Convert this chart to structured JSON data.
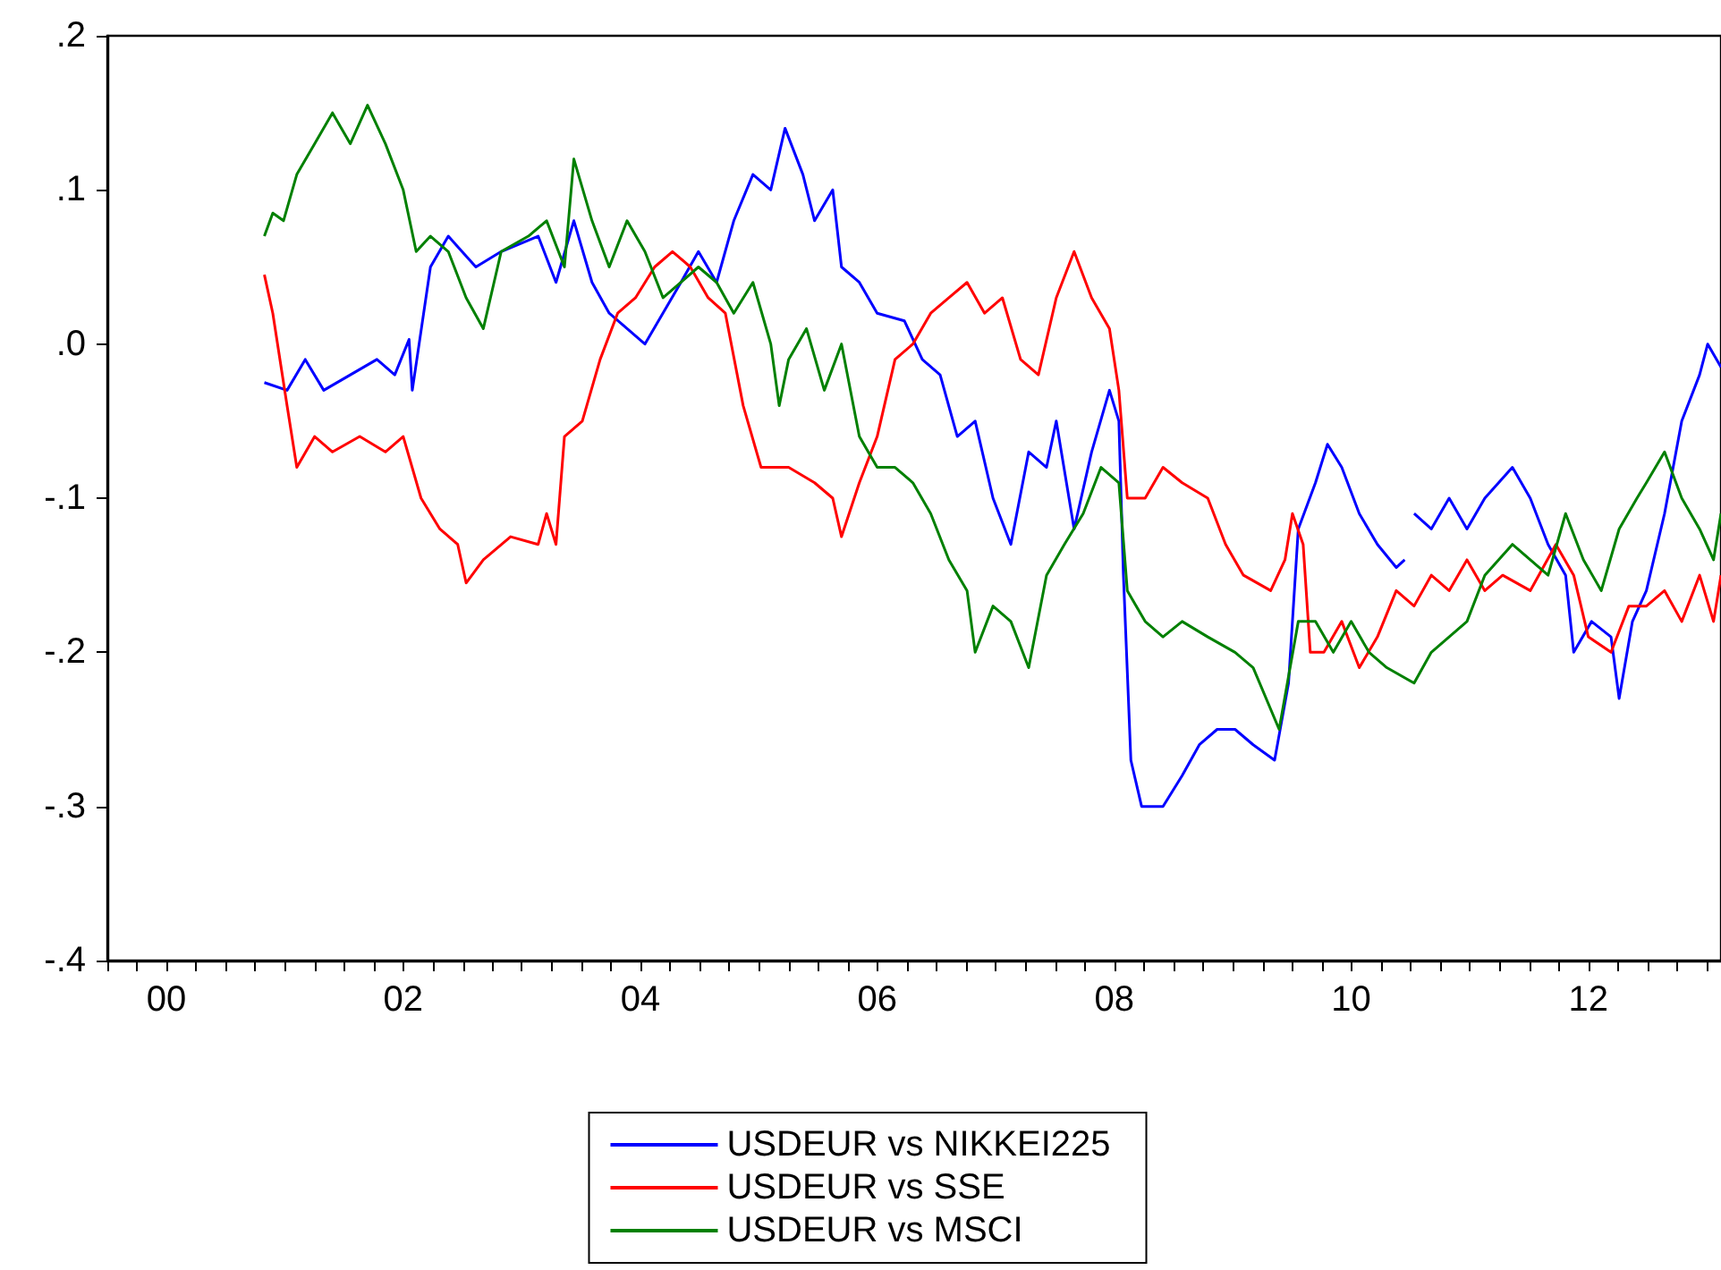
{
  "chart_data": {
    "type": "line",
    "xlim": [
      "2000-01-01",
      "2013-08-14"
    ],
    "xticks": [
      {
        "value": "2000-01-01",
        "label": null
      },
      {
        "value": "2000-04-01",
        "label": null
      },
      {
        "value": "2000-07-01",
        "label": "00"
      },
      {
        "value": "2000-10-01",
        "label": null
      },
      {
        "value": "2001-01-01",
        "label": null
      },
      {
        "value": "2001-04-01",
        "label": null
      },
      {
        "value": "2001-07-01",
        "label": null
      },
      {
        "value": "2001-10-01",
        "label": null
      },
      {
        "value": "2002-01-01",
        "label": null
      },
      {
        "value": "2002-04-01",
        "label": null
      },
      {
        "value": "2002-07-01",
        "label": "02"
      },
      {
        "value": "2002-10-01",
        "label": null
      },
      {
        "value": "2003-01-01",
        "label": null
      },
      {
        "value": "2003-04-01",
        "label": null
      },
      {
        "value": "2003-07-01",
        "label": null
      },
      {
        "value": "2003-10-01",
        "label": null
      },
      {
        "value": "2004-01-01",
        "label": null
      },
      {
        "value": "2004-04-01",
        "label": null
      },
      {
        "value": "2004-07-01",
        "label": "04"
      },
      {
        "value": "2004-10-01",
        "label": null
      },
      {
        "value": "2005-01-01",
        "label": null
      },
      {
        "value": "2005-04-01",
        "label": null
      },
      {
        "value": "2005-07-01",
        "label": null
      },
      {
        "value": "2005-10-01",
        "label": null
      },
      {
        "value": "2006-01-01",
        "label": null
      },
      {
        "value": "2006-04-01",
        "label": null
      },
      {
        "value": "2006-07-01",
        "label": "06"
      },
      {
        "value": "2006-10-01",
        "label": null
      },
      {
        "value": "2007-01-01",
        "label": null
      },
      {
        "value": "2007-04-01",
        "label": null
      },
      {
        "value": "2007-07-01",
        "label": null
      },
      {
        "value": "2007-10-01",
        "label": null
      },
      {
        "value": "2008-01-01",
        "label": null
      },
      {
        "value": "2008-04-01",
        "label": null
      },
      {
        "value": "2008-07-01",
        "label": "08"
      },
      {
        "value": "2008-10-01",
        "label": null
      },
      {
        "value": "2009-01-01",
        "label": null
      },
      {
        "value": "2009-04-01",
        "label": null
      },
      {
        "value": "2009-07-01",
        "label": null
      },
      {
        "value": "2009-10-01",
        "label": null
      },
      {
        "value": "2010-01-01",
        "label": null
      },
      {
        "value": "2010-04-01",
        "label": null
      },
      {
        "value": "2010-07-01",
        "label": "10"
      },
      {
        "value": "2010-10-01",
        "label": null
      },
      {
        "value": "2011-01-01",
        "label": null
      },
      {
        "value": "2011-04-01",
        "label": null
      },
      {
        "value": "2011-07-01",
        "label": null
      },
      {
        "value": "2011-10-01",
        "label": null
      },
      {
        "value": "2012-01-01",
        "label": null
      },
      {
        "value": "2012-04-01",
        "label": null
      },
      {
        "value": "2012-07-01",
        "label": "12"
      },
      {
        "value": "2012-10-01",
        "label": null
      },
      {
        "value": "2013-01-01",
        "label": null
      },
      {
        "value": "2013-04-01",
        "label": null
      },
      {
        "value": "2013-07-01",
        "label": null
      }
    ],
    "ylim": [
      -0.4,
      0.2
    ],
    "yticks": [
      {
        "value": -0.4,
        "label": "-.4"
      },
      {
        "value": -0.3,
        "label": "-.3"
      },
      {
        "value": -0.2,
        "label": "-.2"
      },
      {
        "value": -0.1,
        "label": "-.1"
      },
      {
        "value": 0,
        "label": ".0"
      },
      {
        "value": 0.1,
        "label": ".1"
      },
      {
        "value": 0.2,
        "label": ".2"
      }
    ],
    "grid": false,
    "legend": "bottom",
    "marker": "none",
    "line_style": "solid",
    "series": [
      {
        "name": "USDEUR vs NIKKEI225",
        "color": "#0000ff",
        "x": [
          "2001-04-29",
          "2001-07-08",
          "2001-09-02",
          "2001-10-29",
          "2002-01-19",
          "2002-04-11",
          "2002-06-05",
          "2002-07-19",
          "2002-07-29",
          "2002-09-23",
          "2002-11-17",
          "2003-02-10",
          "2003-04-29",
          "2003-08-21",
          "2003-10-15",
          "2003-12-09",
          "2004-02-03",
          "2004-03-27",
          "2004-07-15",
          "2004-11-03",
          "2004-12-27",
          "2005-02-21",
          "2005-04-15",
          "2005-06-13",
          "2005-08-07",
          "2005-09-20",
          "2005-11-14",
          "2005-12-20",
          "2006-02-14",
          "2006-03-13",
          "2006-05-07",
          "2006-07-01",
          "2006-09-23",
          "2006-11-17",
          "2007-01-11",
          "2007-03-05",
          "2007-04-29",
          "2007-06-23",
          "2007-08-17",
          "2007-10-11",
          "2007-12-05",
          "2008-01-04",
          "2008-02-28",
          "2008-04-22",
          "2008-06-16",
          "2008-07-15",
          "2008-07-29",
          "2008-08-21",
          "2008-09-23",
          "2008-11-28",
          "2009-01-26",
          "2009-03-20",
          "2009-05-14",
          "2009-07-08",
          "2009-09-02",
          "2009-11-07",
          "2009-12-20",
          "2010-01-19",
          "2010-03-13",
          "2010-04-19",
          "2010-06-02",
          "2010-07-26",
          "2010-09-20",
          "2010-11-17",
          "2010-12-13",
          "2010-12-23",
          "2011-01-11",
          "2011-03-05",
          "2011-04-29",
          "2011-06-23",
          "2011-08-17",
          "2011-11-10",
          "2012-01-04",
          "2012-02-28",
          "2012-04-22",
          "2012-05-17",
          "2012-07-11",
          "2012-09-09",
          "2012-10-04",
          "2012-11-14",
          "2012-12-27",
          "2013-02-21",
          "2013-04-15",
          "2013-06-09",
          "2013-07-04",
          "2013-08-14"
        ],
        "values": [
          -0.025,
          -0.03,
          -0.01,
          -0.03,
          -0.02,
          -0.01,
          -0.02,
          0.003,
          -0.03,
          0.05,
          0.07,
          0.05,
          0.06,
          0.07,
          0.04,
          0.08,
          0.04,
          0.02,
          0.0,
          0.04,
          0.06,
          0.04,
          0.08,
          0.11,
          0.1,
          0.14,
          0.11,
          0.08,
          0.1,
          0.05,
          0.04,
          0.02,
          0.015,
          -0.01,
          -0.02,
          -0.06,
          -0.05,
          -0.1,
          -0.13,
          -0.07,
          -0.08,
          -0.05,
          -0.12,
          -0.07,
          -0.03,
          -0.05,
          -0.15,
          -0.27,
          -0.3,
          -0.3,
          -0.28,
          -0.26,
          -0.25,
          -0.25,
          -0.26,
          -0.27,
          -0.22,
          -0.12,
          -0.09,
          -0.065,
          -0.08,
          -0.11,
          -0.13,
          -0.145,
          -0.14,
          null,
          -0.11,
          -0.12,
          -0.1,
          -0.12,
          -0.1,
          -0.08,
          -0.1,
          -0.13,
          -0.15,
          -0.2,
          -0.18,
          -0.19,
          -0.23,
          -0.18,
          -0.16,
          -0.11,
          -0.05,
          -0.02,
          0.0,
          -0.015
        ]
      },
      {
        "name": "USDEUR vs SSE",
        "color": "#ff0000",
        "x": [
          "2001-04-29",
          "2001-05-25",
          "2001-07-08",
          "2001-08-07",
          "2001-10-01",
          "2001-11-25",
          "2002-02-17",
          "2002-05-07",
          "2002-07-01",
          "2002-08-25",
          "2002-10-22",
          "2002-12-16",
          "2003-01-11",
          "2003-03-05",
          "2003-05-28",
          "2003-08-21",
          "2003-09-16",
          "2003-10-15",
          "2003-11-10",
          "2004-01-04",
          "2004-02-28",
          "2004-04-22",
          "2004-06-16",
          "2004-08-14",
          "2004-10-08",
          "2004-12-02",
          "2005-01-26",
          "2005-03-20",
          "2005-05-14",
          "2005-07-08",
          "2005-10-01",
          "2005-12-20",
          "2006-02-14",
          "2006-03-13",
          "2006-05-07",
          "2006-07-01",
          "2006-08-25",
          "2006-10-19",
          "2006-12-13",
          "2007-02-07",
          "2007-04-04",
          "2007-05-28",
          "2007-07-22",
          "2007-09-16",
          "2007-11-10",
          "2008-01-04",
          "2008-02-28",
          "2008-04-22",
          "2008-06-16",
          "2008-07-15",
          "2008-08-10",
          "2008-10-04",
          "2008-11-28",
          "2009-01-26",
          "2009-04-15",
          "2009-06-09",
          "2009-08-03",
          "2009-10-26",
          "2009-12-09",
          "2010-01-01",
          "2010-02-03",
          "2010-02-25",
          "2010-04-08",
          "2010-06-02",
          "2010-07-26",
          "2010-09-20",
          "2010-11-17",
          "2011-01-11",
          "2011-03-05",
          "2011-04-29",
          "2011-06-23",
          "2011-08-17",
          "2011-10-11",
          "2012-01-04",
          "2012-03-23",
          "2012-05-17",
          "2012-07-01",
          "2012-09-09",
          "2012-11-03",
          "2012-12-27",
          "2013-02-21",
          "2013-04-15",
          "2013-06-09",
          "2013-07-22",
          "2013-08-14"
        ],
        "values": [
          0.045,
          0.02,
          -0.04,
          -0.08,
          -0.06,
          -0.07,
          -0.06,
          -0.07,
          -0.06,
          -0.1,
          -0.12,
          -0.13,
          -0.155,
          -0.14,
          -0.125,
          -0.13,
          -0.11,
          -0.13,
          -0.06,
          -0.05,
          -0.01,
          0.02,
          0.03,
          0.05,
          0.06,
          0.05,
          0.03,
          0.02,
          -0.04,
          -0.08,
          -0.08,
          -0.09,
          -0.1,
          -0.125,
          -0.09,
          -0.06,
          -0.01,
          0.0,
          0.02,
          0.03,
          0.04,
          0.02,
          0.03,
          -0.01,
          -0.02,
          0.03,
          0.06,
          0.03,
          0.01,
          -0.03,
          -0.1,
          -0.1,
          -0.08,
          -0.09,
          -0.1,
          -0.13,
          -0.15,
          -0.16,
          -0.14,
          -0.11,
          -0.13,
          -0.2,
          -0.2,
          -0.18,
          -0.21,
          -0.19,
          -0.16,
          -0.17,
          -0.15,
          -0.16,
          -0.14,
          -0.16,
          -0.15,
          -0.16,
          -0.13,
          -0.15,
          -0.19,
          -0.2,
          -0.17,
          -0.17,
          -0.16,
          -0.18,
          -0.15,
          -0.18,
          -0.15
        ]
      },
      {
        "name": "USDEUR vs MSCI",
        "color": "#008000",
        "x": [
          "2001-04-29",
          "2001-05-25",
          "2001-06-27",
          "2001-08-07",
          "2001-10-01",
          "2001-11-25",
          "2002-01-19",
          "2002-03-13",
          "2002-05-07",
          "2002-07-01",
          "2002-08-10",
          "2002-09-23",
          "2002-11-17",
          "2003-01-11",
          "2003-03-05",
          "2003-04-29",
          "2003-07-22",
          "2003-09-16",
          "2003-11-10",
          "2003-12-09",
          "2004-02-03",
          "2004-03-27",
          "2004-05-21",
          "2004-07-15",
          "2004-09-09",
          "2004-11-03",
          "2004-12-27",
          "2005-02-21",
          "2005-04-15",
          "2005-06-13",
          "2005-08-07",
          "2005-09-02",
          "2005-10-01",
          "2005-11-25",
          "2006-01-19",
          "2006-03-13",
          "2006-05-07",
          "2006-07-01",
          "2006-08-25",
          "2006-10-19",
          "2006-12-13",
          "2007-02-07",
          "2007-04-04",
          "2007-04-29",
          "2007-06-23",
          "2007-08-17",
          "2007-10-11",
          "2007-12-05",
          "2008-01-29",
          "2008-03-27",
          "2008-05-21",
          "2008-07-15",
          "2008-08-10",
          "2008-10-04",
          "2008-11-28",
          "2009-01-26",
          "2009-04-15",
          "2009-07-08",
          "2009-09-02",
          "2009-11-21",
          "2010-01-19",
          "2010-03-13",
          "2010-05-07",
          "2010-07-01",
          "2010-08-25",
          "2010-10-19",
          "2011-01-11",
          "2011-03-05",
          "2011-04-29",
          "2011-06-23",
          "2011-08-17",
          "2011-11-10",
          "2012-01-04",
          "2012-02-28",
          "2012-04-22",
          "2012-06-16",
          "2012-08-10",
          "2012-10-04",
          "2012-11-28",
          "2012-12-27",
          "2013-02-21",
          "2013-04-15",
          "2013-06-09",
          "2013-07-22",
          "2013-08-14"
        ],
        "values": [
          0.07,
          0.085,
          0.08,
          0.11,
          0.13,
          0.15,
          0.13,
          0.155,
          0.13,
          0.1,
          0.06,
          0.07,
          0.06,
          0.03,
          0.01,
          0.06,
          0.07,
          0.08,
          0.05,
          0.12,
          0.08,
          0.05,
          0.08,
          0.06,
          0.03,
          0.04,
          0.05,
          0.04,
          0.02,
          0.04,
          0.0,
          -0.04,
          -0.01,
          0.01,
          -0.03,
          0.0,
          -0.06,
          -0.08,
          -0.08,
          -0.09,
          -0.11,
          -0.14,
          -0.16,
          -0.2,
          -0.17,
          -0.18,
          -0.21,
          -0.15,
          -0.13,
          -0.11,
          -0.08,
          -0.09,
          -0.16,
          -0.18,
          -0.19,
          -0.18,
          -0.19,
          -0.2,
          -0.21,
          -0.25,
          -0.18,
          -0.18,
          -0.2,
          -0.18,
          -0.2,
          -0.21,
          -0.22,
          -0.2,
          -0.19,
          -0.18,
          -0.15,
          -0.13,
          -0.14,
          -0.15,
          -0.11,
          -0.14,
          -0.16,
          -0.12,
          -0.1,
          -0.09,
          -0.07,
          -0.1,
          -0.12,
          -0.14,
          -0.11
        ]
      }
    ]
  }
}
